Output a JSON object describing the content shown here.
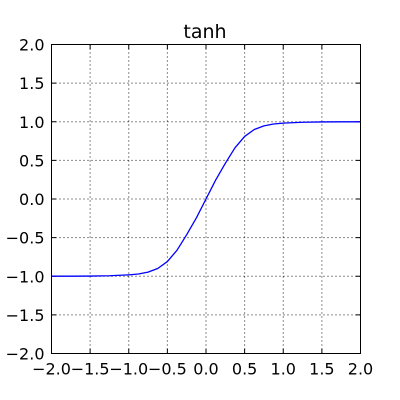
{
  "chart_data": {
    "type": "line",
    "title": "tanh",
    "xlabel": "",
    "ylabel": "",
    "xlim": [
      -2.0,
      2.0
    ],
    "ylim": [
      -2.0,
      2.0
    ],
    "x_ticks": [
      -2.0,
      -1.5,
      -1.0,
      -0.5,
      0.0,
      0.5,
      1.0,
      1.5,
      2.0
    ],
    "y_ticks": [
      -2.0,
      -1.5,
      -1.0,
      -0.5,
      0.0,
      0.5,
      1.0,
      1.5,
      2.0
    ],
    "x_tick_labels": [
      "−2.0",
      "−1.5",
      "−1.0",
      "−0.5",
      "0.0",
      "0.5",
      "1.0",
      "1.5",
      "2.0"
    ],
    "y_tick_labels": [
      "−2.0",
      "−1.5",
      "−1.0",
      "−0.5",
      "0.0",
      "0.5",
      "1.0",
      "1.5",
      "2.0"
    ],
    "grid": true,
    "series": [
      {
        "color": "#0000ff",
        "x": [
          -2.0,
          -1.75,
          -1.5,
          -1.25,
          -1.0,
          -0.875,
          -0.75,
          -0.625,
          -0.5,
          -0.375,
          -0.25,
          -0.125,
          0.0,
          0.125,
          0.25,
          0.375,
          0.5,
          0.625,
          0.75,
          0.875,
          1.0,
          1.25,
          1.5,
          1.75,
          2.0
        ],
        "y": [
          -0.9993,
          -0.9991,
          -0.9975,
          -0.9933,
          -0.982,
          -0.9705,
          -0.9468,
          -0.8994,
          -0.8096,
          -0.6627,
          -0.4621,
          -0.2449,
          0.0,
          0.2449,
          0.4621,
          0.6627,
          0.8096,
          0.8994,
          0.9468,
          0.9705,
          0.982,
          0.9933,
          0.9975,
          0.9991,
          0.9993
        ]
      }
    ]
  }
}
